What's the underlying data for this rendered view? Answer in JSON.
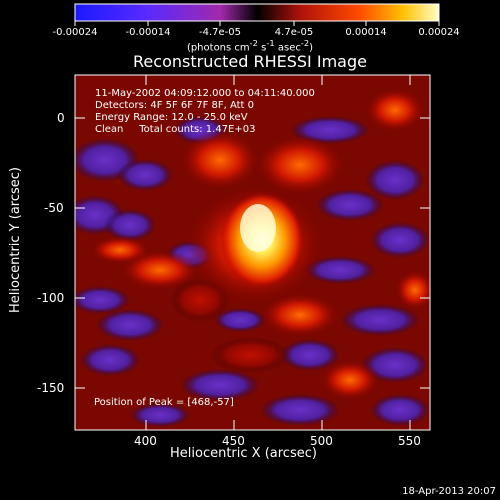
{
  "colorbar": {
    "ticks": [
      "-0.00024",
      "-0.00014",
      "-4.7e-05",
      "4.7e-05",
      "0.00014",
      "0.00024"
    ],
    "units_html": "(photons cm<sup>-2</sup> s<sup>-1</sup> asec<sup>-2</sup>)"
  },
  "title": "Reconstructed RHESSI Image",
  "info": {
    "time": "11-May-2002 04:09:12.000 to 04:11:40.000",
    "detectors": "Detectors: 4F 5F 6F 7F 8F, Att 0",
    "energy": "Energy Range: 12.0 - 25.0 keV",
    "method": "Clean     Total counts: 1.47E+03"
  },
  "peak": "Position of Peak = [468,-57]",
  "x_axis": {
    "label": "Heliocentric X (arcsec)",
    "ticks": [
      "400",
      "450",
      "500",
      "550"
    ]
  },
  "y_axis": {
    "label": "Heliocentric Y (arcsec)",
    "ticks": [
      "0",
      "-50",
      "-100",
      "-150"
    ]
  },
  "timestamp": "18-Apr-2013 20:07"
}
